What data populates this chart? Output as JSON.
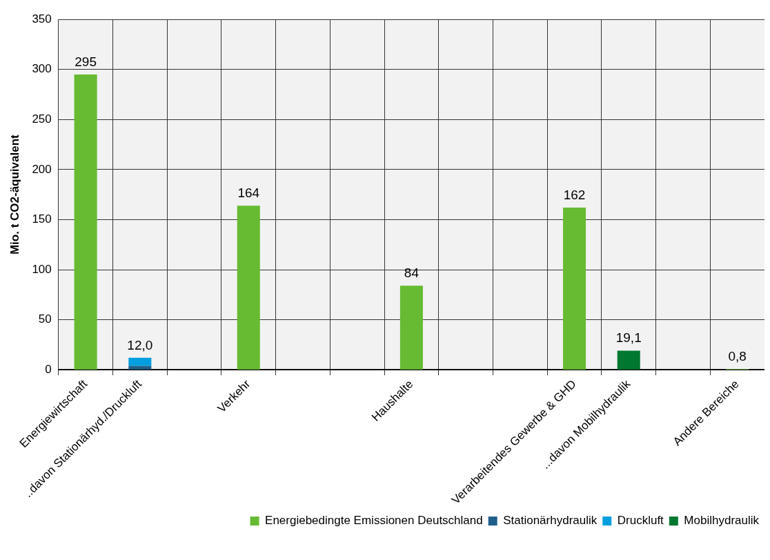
{
  "chart_data": {
    "type": "bar",
    "ylabel": "Mio. t CO2-äquivalent",
    "categories": [
      "Energiewirtschaft",
      "..davon Stationärhyd./Druckluft",
      null,
      "Verkehr",
      null,
      null,
      "Haushalte",
      null,
      null,
      "Verarbeitendes Gewerbe & GHD",
      "...davon Mobilhydraulik",
      null,
      "Andere Bereiche"
    ],
    "stacked": true,
    "series": [
      {
        "name": "Energiebedingte Emissionen Deutschland",
        "color": "#66bb33",
        "values": [
          295,
          null,
          null,
          164,
          null,
          null,
          84,
          null,
          null,
          162,
          null,
          null,
          0.8
        ],
        "value_labels": [
          "295",
          null,
          null,
          "164",
          null,
          null,
          "84",
          null,
          null,
          "162",
          null,
          null,
          "0,8"
        ]
      },
      {
        "name": "Stationärhydraulik",
        "color": "#1f5f8b",
        "values": [
          null,
          4,
          null,
          null,
          null,
          null,
          null,
          null,
          null,
          null,
          null,
          null,
          null
        ]
      },
      {
        "name": "Druckluft",
        "color": "#009fdf",
        "values": [
          null,
          8,
          null,
          null,
          null,
          null,
          null,
          null,
          null,
          null,
          null,
          null,
          null
        ]
      },
      {
        "name": "Mobilhydraulik",
        "color": "#00782f",
        "values": [
          null,
          null,
          null,
          null,
          null,
          null,
          null,
          null,
          null,
          null,
          19.1,
          null,
          null
        ],
        "value_labels": [
          null,
          null,
          null,
          null,
          null,
          null,
          null,
          null,
          null,
          null,
          "19,1",
          null,
          null
        ]
      }
    ],
    "totals": [
      null,
      "12,0",
      null,
      null,
      null,
      null,
      null,
      null,
      null,
      null,
      null,
      null,
      null
    ],
    "ylim": [
      0,
      350
    ],
    "yticks": [
      0,
      50,
      100,
      150,
      200,
      250,
      300,
      350
    ],
    "grid": true,
    "legend": "bottom"
  }
}
